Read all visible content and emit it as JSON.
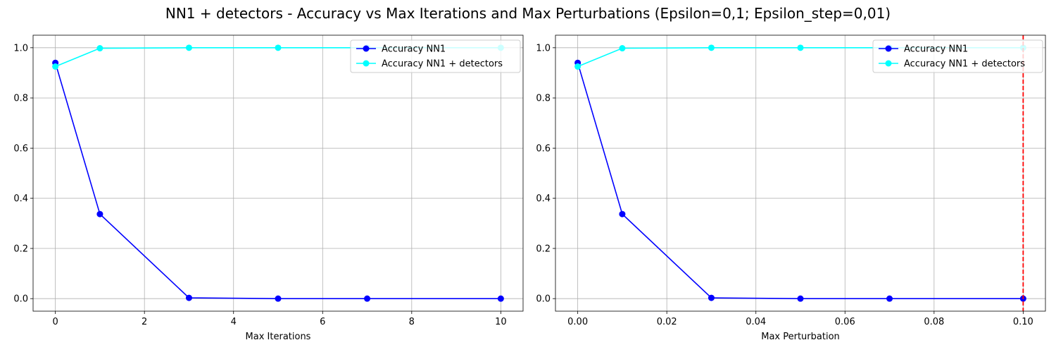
{
  "figure": {
    "title": "NN1 + detectors - Accuracy vs Max Iterations and Max Perturbations (Epsilon=0,1; Epsilon_step=0,01)"
  },
  "chart_data": [
    {
      "type": "line",
      "xlabel": "Max Iterations",
      "ylabel": "",
      "xlim": [
        -0.5,
        10.5
      ],
      "ylim": [
        -0.05,
        1.05
      ],
      "grid": true,
      "legend_position": "upper-right",
      "x": [
        0,
        1,
        3,
        5,
        7,
        10
      ],
      "xticks": [
        0,
        2,
        4,
        6,
        8,
        10
      ],
      "xtick_labels": [
        "0",
        "2",
        "4",
        "6",
        "8",
        "10"
      ],
      "yticks": [
        0.0,
        0.2,
        0.4,
        0.6,
        0.8,
        1.0
      ],
      "ytick_labels": [
        "0.0",
        "0.2",
        "0.4",
        "0.6",
        "0.8",
        "1.0"
      ],
      "series": [
        {
          "name": "Accuracy NN1",
          "color": "#0000ff",
          "values": [
            0.94,
            0.337,
            0.003,
            0.0,
            0.0,
            0.0
          ]
        },
        {
          "name": "Accuracy NN1 + detectors",
          "color": "#00ffff",
          "values": [
            0.925,
            0.998,
            1.0,
            1.0,
            1.0,
            1.0
          ]
        }
      ],
      "vline": null
    },
    {
      "type": "line",
      "xlabel": "Max Perturbation",
      "ylabel": "",
      "xlim": [
        -0.005,
        0.105
      ],
      "ylim": [
        -0.05,
        1.05
      ],
      "grid": true,
      "legend_position": "upper-right",
      "x": [
        0.0,
        0.01,
        0.03,
        0.05,
        0.07,
        0.1
      ],
      "xticks": [
        0.0,
        0.02,
        0.04,
        0.06,
        0.08,
        0.1
      ],
      "xtick_labels": [
        "0.00",
        "0.02",
        "0.04",
        "0.06",
        "0.08",
        "0.10"
      ],
      "yticks": [
        0.0,
        0.2,
        0.4,
        0.6,
        0.8,
        1.0
      ],
      "ytick_labels": [
        "0.0",
        "0.2",
        "0.4",
        "0.6",
        "0.8",
        "1.0"
      ],
      "series": [
        {
          "name": "Accuracy NN1",
          "color": "#0000ff",
          "values": [
            0.94,
            0.337,
            0.003,
            0.0,
            0.0,
            0.0
          ]
        },
        {
          "name": "Accuracy NN1 + detectors",
          "color": "#00ffff",
          "values": [
            0.925,
            0.998,
            1.0,
            1.0,
            1.0,
            1.0
          ]
        }
      ],
      "vline": {
        "x": 0.1,
        "color": "#ff0000",
        "style": "dashed"
      }
    }
  ]
}
